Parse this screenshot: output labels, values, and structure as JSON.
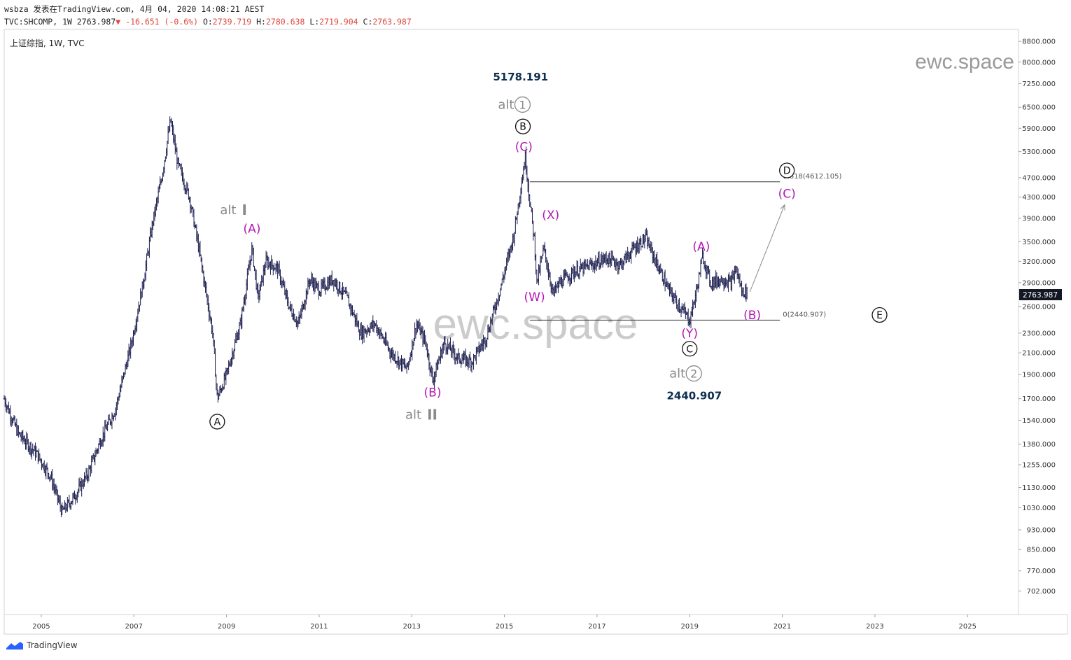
{
  "header": {
    "line1": "wsbza 发表在TradingView.com, 4月 04, 2020 14:08:21 AEST",
    "symbol": "TVC:SHCOMP, 1W",
    "last": "2763.987",
    "change": "-16.651 (-0.6%)",
    "open_label": "O:",
    "open": "2739.719",
    "high_label": "H:",
    "high": "2780.638",
    "low_label": "L:",
    "low": "2719.904",
    "close_label": "C:",
    "close": "2763.987"
  },
  "legend": "上证综指, 1W, TVC",
  "watermark_corner": "ewc.space",
  "watermark_center": "ewc.space",
  "footer": {
    "brand": "TradingView"
  },
  "price_tag": "2763.987",
  "colors": {
    "candle": "#1b1d4e",
    "magenta": "#b316b3",
    "gray": "#8a8a8a",
    "navy": "#0d2f4f",
    "black": "#111111",
    "tag": "#131722"
  },
  "chart_data": {
    "type": "candlestick",
    "scale": "log",
    "ylim": [
      630,
      9300
    ],
    "xlim": [
      2004.2,
      2026.1
    ],
    "y_ticks": [
      "8800.000",
      "8000.000",
      "7250.000",
      "6500.000",
      "5900.000",
      "5300.000",
      "4700.000",
      "4300.000",
      "3900.000",
      "3500.000",
      "3200.000",
      "2900.000",
      "2600.000",
      "2300.000",
      "2100.000",
      "1900.000",
      "1700.000",
      "1540.000",
      "1380.000",
      "1255.000",
      "1130.000",
      "1030.000",
      "930.000",
      "850.000",
      "770.000",
      "702.000"
    ],
    "x_ticks": [
      "2005",
      "2007",
      "2009",
      "2011",
      "2013",
      "2015",
      "2017",
      "2019",
      "2021",
      "2023",
      "2025"
    ],
    "price_anchors": [
      [
        2004.2,
        1700
      ],
      [
        2004.5,
        1450
      ],
      [
        2004.9,
        1320
      ],
      [
        2005.2,
        1190
      ],
      [
        2005.45,
        1010
      ],
      [
        2005.7,
        1080
      ],
      [
        2006.0,
        1200
      ],
      [
        2006.3,
        1420
      ],
      [
        2006.6,
        1620
      ],
      [
        2006.95,
        2200
      ],
      [
        2007.2,
        2900
      ],
      [
        2007.4,
        3800
      ],
      [
        2007.6,
        4700
      ],
      [
        2007.79,
        6124
      ],
      [
        2007.95,
        5000
      ],
      [
        2008.2,
        4300
      ],
      [
        2008.4,
        3400
      ],
      [
        2008.7,
        2300
      ],
      [
        2008.8,
        1700
      ],
      [
        2009.0,
        1900
      ],
      [
        2009.3,
        2400
      ],
      [
        2009.55,
        3400
      ],
      [
        2009.68,
        2700
      ],
      [
        2009.85,
        3200
      ],
      [
        2010.1,
        3100
      ],
      [
        2010.35,
        2600
      ],
      [
        2010.55,
        2400
      ],
      [
        2010.8,
        2950
      ],
      [
        2011.0,
        2800
      ],
      [
        2011.3,
        2950
      ],
      [
        2011.6,
        2700
      ],
      [
        2011.9,
        2300
      ],
      [
        2012.2,
        2400
      ],
      [
        2012.55,
        2100
      ],
      [
        2012.9,
        1950
      ],
      [
        2013.1,
        2400
      ],
      [
        2013.3,
        2200
      ],
      [
        2013.45,
        1850
      ],
      [
        2013.7,
        2200
      ],
      [
        2014.0,
        2050
      ],
      [
        2014.3,
        2020
      ],
      [
        2014.6,
        2250
      ],
      [
        2014.9,
        2800
      ],
      [
        2015.2,
        3600
      ],
      [
        2015.45,
        5178
      ],
      [
        2015.55,
        4200
      ],
      [
        2015.65,
        3500
      ],
      [
        2015.7,
        2900
      ],
      [
        2015.85,
        3400
      ],
      [
        2016.05,
        2750
      ],
      [
        2016.2,
        2900
      ],
      [
        2016.5,
        3050
      ],
      [
        2016.9,
        3150
      ],
      [
        2017.2,
        3250
      ],
      [
        2017.5,
        3150
      ],
      [
        2017.8,
        3400
      ],
      [
        2018.05,
        3560
      ],
      [
        2018.3,
        3150
      ],
      [
        2018.55,
        2800
      ],
      [
        2018.85,
        2550
      ],
      [
        2019.0,
        2441
      ],
      [
        2019.15,
        2800
      ],
      [
        2019.28,
        3280
      ],
      [
        2019.45,
        2900
      ],
      [
        2019.7,
        2950
      ],
      [
        2019.9,
        2900
      ],
      [
        2020.0,
        3100
      ],
      [
        2020.12,
        2800
      ],
      [
        2020.25,
        2764
      ]
    ],
    "levels": [
      {
        "label": "0.618(4612.105)",
        "value": 4612.105
      },
      {
        "label": "0(2440.907)",
        "value": 2440.907
      }
    ],
    "annotations": [
      {
        "text": "5178.191",
        "x": 2015.35,
        "y": 7500,
        "style": "navy"
      },
      {
        "text": "alt",
        "circ": "1",
        "x": 2015.3,
        "y": 6580,
        "style": "gray"
      },
      {
        "text": "B",
        "circ": "B",
        "x": 2015.4,
        "y": 5950,
        "style": "black"
      },
      {
        "text": "(C)",
        "x": 2015.42,
        "y": 5420,
        "style": "magenta"
      },
      {
        "text": "(X)",
        "x": 2016.0,
        "y": 3960,
        "style": "magenta"
      },
      {
        "text": "(W)",
        "x": 2015.65,
        "y": 2720,
        "style": "magenta"
      },
      {
        "text": "(A)",
        "x": 2009.55,
        "y": 3720,
        "style": "magenta"
      },
      {
        "text": "alt",
        "roman": "I",
        "x": 2009.3,
        "y": 4050,
        "style": "gray"
      },
      {
        "text": "A",
        "circ": "A",
        "x": 2008.8,
        "y": 1530,
        "style": "black"
      },
      {
        "text": "(B)",
        "x": 2013.45,
        "y": 1750,
        "style": "magenta"
      },
      {
        "text": "alt",
        "roman": "II",
        "x": 2013.3,
        "y": 1580,
        "style": "gray"
      },
      {
        "text": "(A)",
        "x": 2019.25,
        "y": 3430,
        "style": "magenta"
      },
      {
        "text": "(B)",
        "x": 2020.35,
        "y": 2500,
        "style": "magenta"
      },
      {
        "text": "(Y)",
        "x": 2019.0,
        "y": 2300,
        "style": "magenta"
      },
      {
        "text": "C",
        "circ": "C",
        "x": 2019.0,
        "y": 2140,
        "style": "black"
      },
      {
        "text": "alt",
        "circ": "2",
        "x": 2019.0,
        "y": 1910,
        "style": "gray"
      },
      {
        "text": "2440.907",
        "x": 2019.1,
        "y": 1730,
        "style": "navy"
      },
      {
        "text": "D",
        "circ": "D",
        "x": 2021.1,
        "y": 4860,
        "style": "black"
      },
      {
        "text": "(C)",
        "x": 2021.1,
        "y": 4370,
        "style": "magenta"
      },
      {
        "text": "E",
        "circ": "E",
        "x": 2023.1,
        "y": 2500,
        "style": "black"
      }
    ],
    "arrow": {
      "from": [
        2020.3,
        2780
      ],
      "to": [
        2021.05,
        4150
      ]
    }
  }
}
